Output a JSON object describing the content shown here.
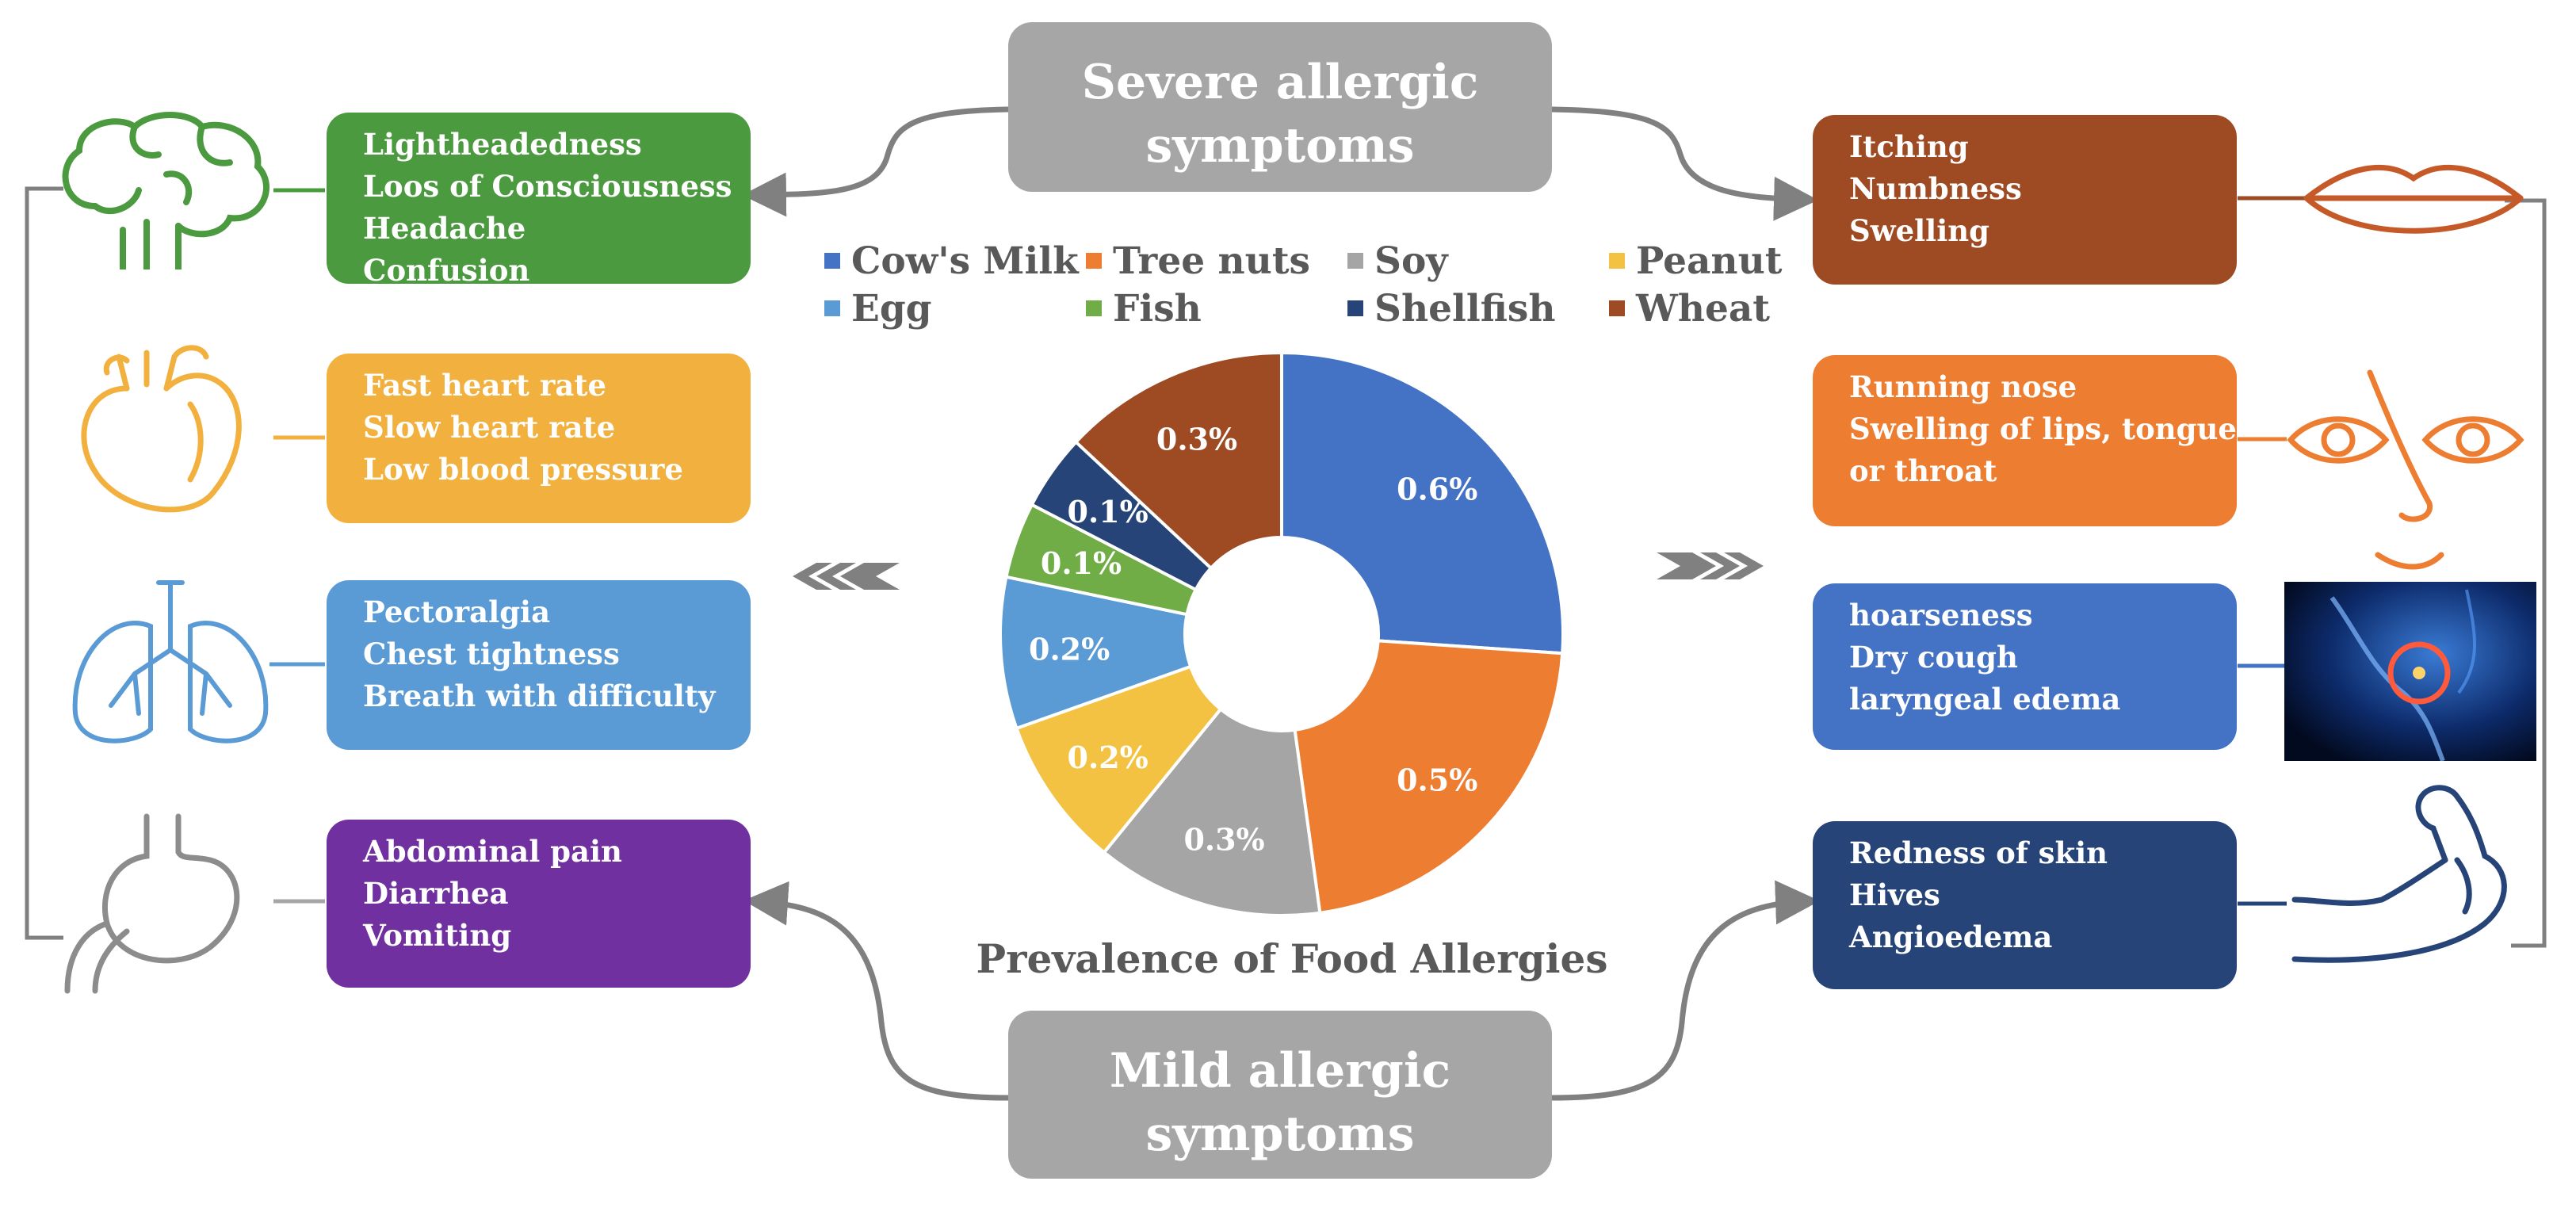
{
  "severe": {
    "line1": "Severe allergic",
    "line2": "symptoms"
  },
  "mild": {
    "line1": "Mild allergic",
    "line2": "symptoms"
  },
  "boxes": {
    "brain": {
      "lines": [
        "Lightheadedness",
        "Loos of Consciousness",
        "Headache",
        "Confusion"
      ],
      "color": "#4c9a3f"
    },
    "heart": {
      "lines": [
        "Fast heart rate",
        "Slow heart rate",
        "Low blood pressure"
      ],
      "color": "#f2b13f"
    },
    "lungs": {
      "lines": [
        "Pectoralgia",
        "Chest tightness",
        "Breath with difficulty"
      ],
      "color": "#5b9bd5"
    },
    "stomach": {
      "lines": [
        "Abdominal pain",
        "Diarrhea",
        "Vomiting"
      ],
      "color": "#7030a0"
    },
    "lips": {
      "lines": [
        "Itching",
        "Numbness",
        "Swelling"
      ],
      "color": "#9e4a22"
    },
    "face": {
      "lines": [
        "Running nose",
        "Swelling of lips, tongue",
        "or throat"
      ],
      "color": "#ed7d31"
    },
    "throat": {
      "lines": [
        "hoarseness",
        "Dry cough",
        "laryngeal edema"
      ],
      "color": "#4472c4"
    },
    "muscle": {
      "lines": [
        "Redness of skin",
        "Hives",
        "Angioedema"
      ],
      "color": "#264478"
    }
  },
  "icons": {
    "brain": "brain-icon",
    "heart": "heart-icon",
    "lungs": "lungs-icon",
    "stomach": "stomach-icon",
    "lips": "lips-icon",
    "face": "eyes-nose-icon",
    "throat": "throat-image",
    "muscle": "flexed-arm-icon"
  },
  "chart_data": {
    "type": "pie",
    "title": "Prevalence of Food Allergies",
    "hole": "donut",
    "categories": [
      "Cow's Milk",
      "Tree nuts",
      "Soy",
      "Peanut",
      "Egg",
      "Fish",
      "Shellfish",
      "Wheat"
    ],
    "values": [
      0.6,
      0.5,
      0.3,
      0.2,
      0.2,
      0.1,
      0.1,
      0.3
    ],
    "labels": [
      "0.6%",
      "0.5%",
      "0.3%",
      "0.2%",
      "0.2%",
      "0.1%",
      "0.1%",
      "0.3%"
    ],
    "colors": [
      "#4472c4",
      "#ed7d31",
      "#a5a5a5",
      "#f4c242",
      "#5b9bd5",
      "#70ad47",
      "#264478",
      "#9e4a22"
    ],
    "slice_order": [
      "Cow's Milk",
      "Tree nuts",
      "Soy",
      "Peanut",
      "Egg",
      "Fish",
      "Shellfish",
      "Wheat"
    ],
    "legend_placement": "top"
  }
}
